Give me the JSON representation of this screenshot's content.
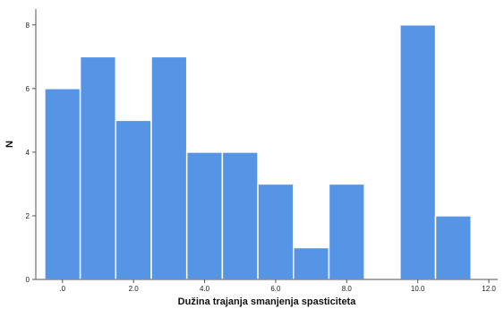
{
  "chart_data": {
    "type": "bar",
    "title": "",
    "xlabel": "Dužina trajanja smanjenja spasticiteta",
    "ylabel": "N",
    "bin_width": 1,
    "bins": [
      {
        "start": -0.5,
        "end": 0.5,
        "value": 6
      },
      {
        "start": 0.5,
        "end": 1.5,
        "value": 7
      },
      {
        "start": 1.5,
        "end": 2.5,
        "value": 5
      },
      {
        "start": 2.5,
        "end": 3.5,
        "value": 7
      },
      {
        "start": 3.5,
        "end": 4.5,
        "value": 4
      },
      {
        "start": 4.5,
        "end": 5.5,
        "value": 4
      },
      {
        "start": 5.5,
        "end": 6.5,
        "value": 3
      },
      {
        "start": 6.5,
        "end": 7.5,
        "value": 1
      },
      {
        "start": 7.5,
        "end": 8.5,
        "value": 3
      },
      {
        "start": 9.5,
        "end": 10.5,
        "value": 8
      },
      {
        "start": 10.5,
        "end": 11.5,
        "value": 2
      }
    ],
    "xlim": [
      -0.75,
      12.25
    ],
    "ylim": [
      0,
      8.5
    ],
    "x_ticks": [
      {
        "value": 0,
        "label": ".0"
      },
      {
        "value": 2,
        "label": "2.0"
      },
      {
        "value": 4,
        "label": "4.0"
      },
      {
        "value": 6,
        "label": "6.0"
      },
      {
        "value": 8,
        "label": "8.0"
      },
      {
        "value": 10,
        "label": "10.0"
      },
      {
        "value": 12,
        "label": "12.0"
      }
    ],
    "y_ticks": [
      {
        "value": 0,
        "label": "0"
      },
      {
        "value": 2,
        "label": "2"
      },
      {
        "value": 4,
        "label": "4"
      },
      {
        "value": 6,
        "label": "6"
      },
      {
        "value": 8,
        "label": "8"
      }
    ],
    "grid": false,
    "legend": "none",
    "colors": {
      "bar_fill": "#5694e6",
      "bar_stroke": "#ffffff",
      "axis": "#555555"
    }
  }
}
